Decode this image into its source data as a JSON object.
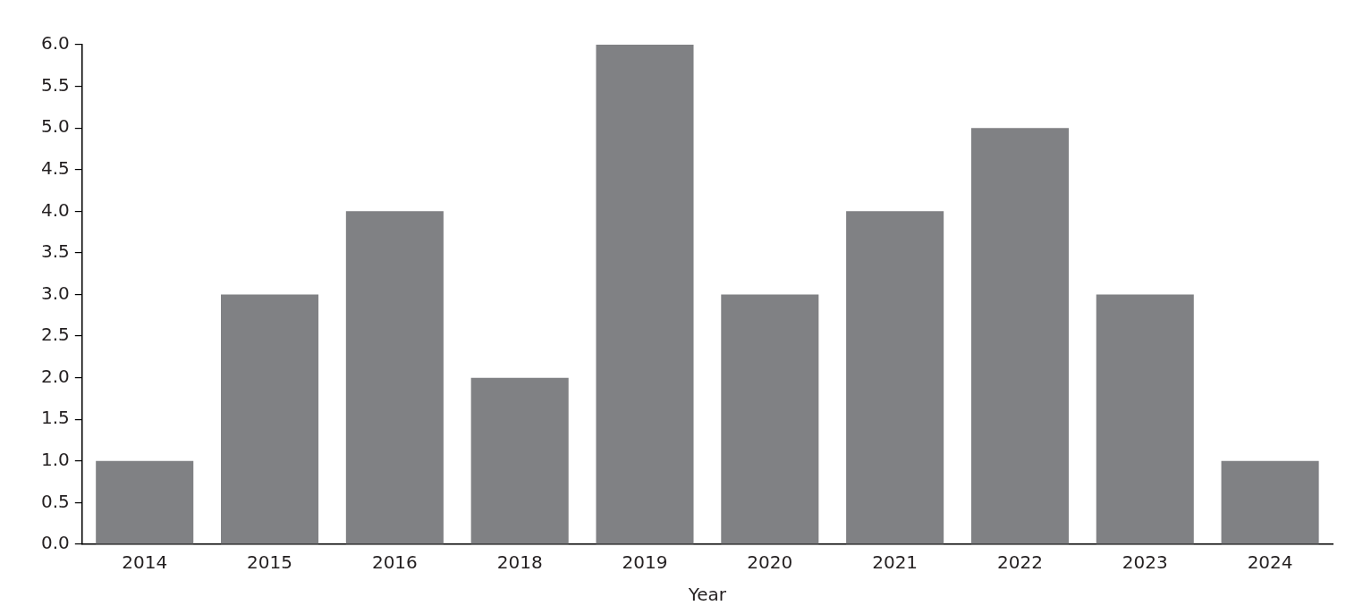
{
  "chart_data": {
    "type": "bar",
    "xlabel": "Year",
    "categories": [
      "2014",
      "2015",
      "2016",
      "2018",
      "2019",
      "2020",
      "2021",
      "2022",
      "2023",
      "2024"
    ],
    "values": [
      1,
      3,
      4,
      2,
      6,
      3,
      4,
      5,
      3,
      1
    ],
    "color": "#808184",
    "ylim": [
      0,
      6
    ],
    "yticks": [
      {
        "value": 0,
        "label": "0.0"
      },
      {
        "value": 0.5,
        "label": "0.5"
      },
      {
        "value": 1,
        "label": "1.0"
      },
      {
        "value": 1.5,
        "label": "1.5"
      },
      {
        "value": 2,
        "label": "2.0"
      },
      {
        "value": 2.5,
        "label": "2.5"
      },
      {
        "value": 3,
        "label": "3.0"
      },
      {
        "value": 3.5,
        "label": "3.5"
      },
      {
        "value": 4,
        "label": "4.0"
      },
      {
        "value": 4.5,
        "label": "4.5"
      },
      {
        "value": 5,
        "label": "5.0"
      },
      {
        "value": 5.5,
        "label": "5.5"
      },
      {
        "value": 6,
        "label": "6.0"
      }
    ],
    "grid": false,
    "legend": false
  }
}
